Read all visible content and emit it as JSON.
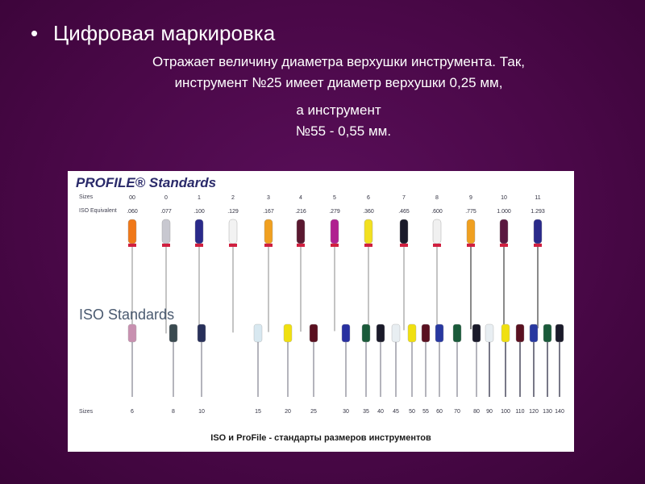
{
  "slide": {
    "title": "Цифровая маркировка",
    "paragraph1_line1": "Отражает величину диаметра верхушки инструмента. Так,",
    "paragraph1_line2": "инструмент №25 имеет диаметр верхушки 0,25 мм,",
    "paragraph2_line1": "а инструмент",
    "paragraph2_line2": "№55 - 0,55 мм."
  },
  "figure": {
    "profile_title": "PROFILE® Standards",
    "profile_sizes_label": "Sizes",
    "profile_iso_label": "ISO Equivalent",
    "profile_instruments": [
      {
        "size": "00",
        "iso": ".060",
        "color": "#f07818"
      },
      {
        "size": "0",
        "iso": ".077",
        "color": "#c8c8d0"
      },
      {
        "size": "1",
        "iso": ".100",
        "color": "#2a2a8a"
      },
      {
        "size": "2",
        "iso": ".129",
        "color": "#f2f2f2"
      },
      {
        "size": "3",
        "iso": ".167",
        "color": "#f0a020"
      },
      {
        "size": "4",
        "iso": ".216",
        "color": "#5a1830"
      },
      {
        "size": "5",
        "iso": ".279",
        "color": "#b02090"
      },
      {
        "size": "6",
        "iso": ".360",
        "color": "#f2e020"
      },
      {
        "size": "7",
        "iso": ".465",
        "color": "#1a1a2a"
      },
      {
        "size": "8",
        "iso": ".600",
        "color": "#f0f0f0"
      },
      {
        "size": "9",
        "iso": ".775",
        "color": "#f0a020"
      },
      {
        "size": "10",
        "iso": "1.000",
        "color": "#5a1840"
      },
      {
        "size": "11",
        "iso": "1.293",
        "color": "#2a2a8a"
      }
    ],
    "iso_title": "ISO Standards",
    "iso_sizes_label": "Sizes",
    "iso_instruments": [
      {
        "size": "6",
        "color": "#c890b0"
      },
      {
        "size": "8",
        "color": "#3a4a50"
      },
      {
        "size": "10",
        "color": "#28305a"
      },
      {
        "size": "15",
        "color": "#d8e8f0"
      },
      {
        "size": "20",
        "color": "#f0e010"
      },
      {
        "size": "25",
        "color": "#5a1020"
      },
      {
        "size": "30",
        "color": "#2830a0"
      },
      {
        "size": "35",
        "color": "#1a5a3a"
      },
      {
        "size": "40",
        "color": "#1a1a2a"
      },
      {
        "size": "45",
        "color": "#e8eef2"
      },
      {
        "size": "50",
        "color": "#f0e010"
      },
      {
        "size": "55",
        "color": "#5a1020"
      },
      {
        "size": "60",
        "color": "#2838a0"
      },
      {
        "size": "70",
        "color": "#1a5a3a"
      },
      {
        "size": "80",
        "color": "#1a1a2a"
      },
      {
        "size": "90",
        "color": "#e8eef2"
      },
      {
        "size": "100",
        "color": "#f0e010"
      },
      {
        "size": "110",
        "color": "#5a1020"
      },
      {
        "size": "120",
        "color": "#2838a0"
      },
      {
        "size": "130",
        "color": "#1a5a3a"
      },
      {
        "size": "140",
        "color": "#1a1a2a"
      }
    ],
    "caption": "ISO и ProFile - стандарты размеров инструментов"
  }
}
